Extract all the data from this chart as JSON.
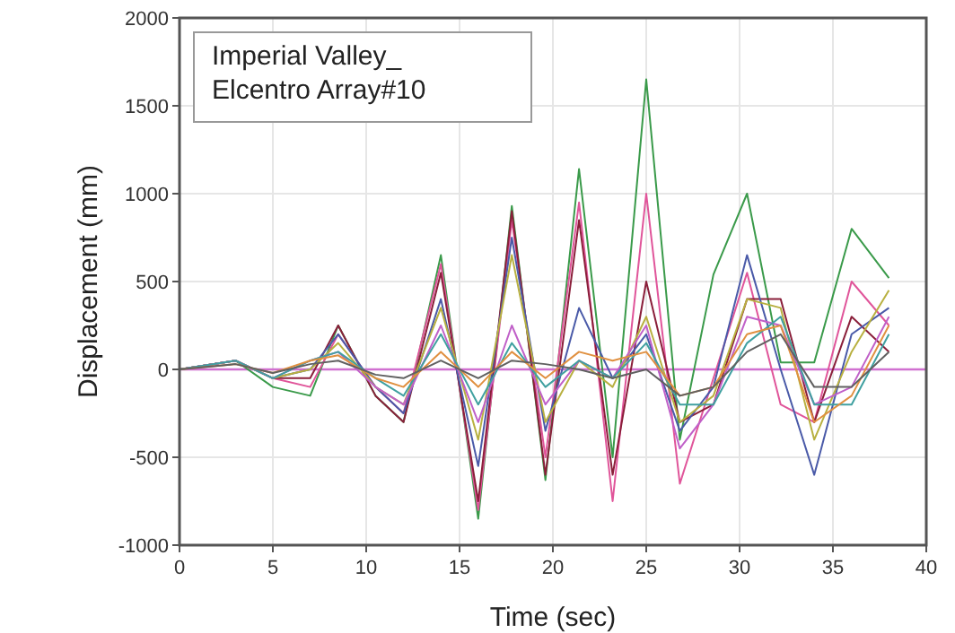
{
  "chart_data": {
    "type": "line",
    "xlabel": "Time (sec)",
    "ylabel": "Displacement (mm)",
    "annotations": [
      "Imperial Valley_\nElcentro Array#10"
    ],
    "x": [
      0,
      3,
      5,
      7,
      8.5,
      10.5,
      12,
      14,
      16,
      17.8,
      19.6,
      21.4,
      23.2,
      25,
      26.8,
      28.6,
      30.4,
      32.2,
      34,
      36,
      38
    ],
    "series": [
      {
        "color": "#3a9a4a",
        "values": [
          0,
          50,
          -100,
          -150,
          250,
          -150,
          -300,
          650,
          -850,
          930,
          -630,
          1140,
          -500,
          1650,
          -400,
          540,
          1000,
          40,
          40,
          800,
          520
        ]
      },
      {
        "color": "#e0559a",
        "values": [
          0,
          50,
          -50,
          -100,
          200,
          -100,
          -250,
          600,
          -800,
          850,
          -500,
          950,
          -750,
          1000,
          -650,
          -50,
          550,
          -200,
          -300,
          500,
          250
        ]
      },
      {
        "color": "#8a1f3a",
        "values": [
          0,
          50,
          -50,
          -50,
          250,
          -150,
          -300,
          550,
          -750,
          900,
          -600,
          850,
          -600,
          500,
          -300,
          -200,
          400,
          400,
          -300,
          300,
          100
        ]
      },
      {
        "color": "#4a5aa8",
        "values": [
          0,
          50,
          -50,
          0,
          200,
          -100,
          -250,
          400,
          -550,
          750,
          -350,
          350,
          -50,
          200,
          -350,
          -100,
          650,
          0,
          -600,
          200,
          350
        ]
      },
      {
        "color": "#b8b040",
        "values": [
          0,
          50,
          -50,
          0,
          150,
          -100,
          -200,
          350,
          -400,
          650,
          -300,
          50,
          -100,
          300,
          -300,
          -150,
          400,
          350,
          -400,
          100,
          450
        ]
      },
      {
        "color": "#c060c8",
        "values": [
          0,
          50,
          -50,
          50,
          100,
          -100,
          -200,
          250,
          -300,
          250,
          -200,
          50,
          -50,
          250,
          -450,
          -200,
          300,
          250,
          -200,
          -100,
          300
        ]
      },
      {
        "color": "#40a0a0",
        "values": [
          0,
          50,
          -50,
          50,
          100,
          -50,
          -150,
          200,
          -200,
          150,
          -100,
          50,
          -50,
          150,
          -200,
          -200,
          150,
          300,
          -200,
          -200,
          200
        ]
      },
      {
        "color": "#e09040",
        "values": [
          0,
          30,
          -20,
          50,
          80,
          -50,
          -100,
          100,
          -100,
          100,
          -50,
          100,
          50,
          100,
          -150,
          -100,
          200,
          250,
          -300,
          -150,
          250
        ]
      },
      {
        "color": "#606060",
        "values": [
          0,
          30,
          -20,
          30,
          50,
          -30,
          -50,
          50,
          -50,
          50,
          30,
          0,
          -50,
          0,
          -150,
          -100,
          100,
          200,
          -100,
          -100,
          100
        ]
      }
    ],
    "ref_lines": [
      {
        "axis": "y",
        "value": 0,
        "color": "#d070d0"
      }
    ],
    "xlim": [
      0,
      40
    ],
    "xticks": [
      0,
      5,
      10,
      15,
      20,
      25,
      30,
      35,
      40
    ],
    "ylim": [
      -1000,
      2000
    ],
    "yticks": [
      -1000,
      -500,
      0,
      500,
      1000,
      1500,
      2000
    ],
    "grid": true,
    "line_style": "solid"
  }
}
